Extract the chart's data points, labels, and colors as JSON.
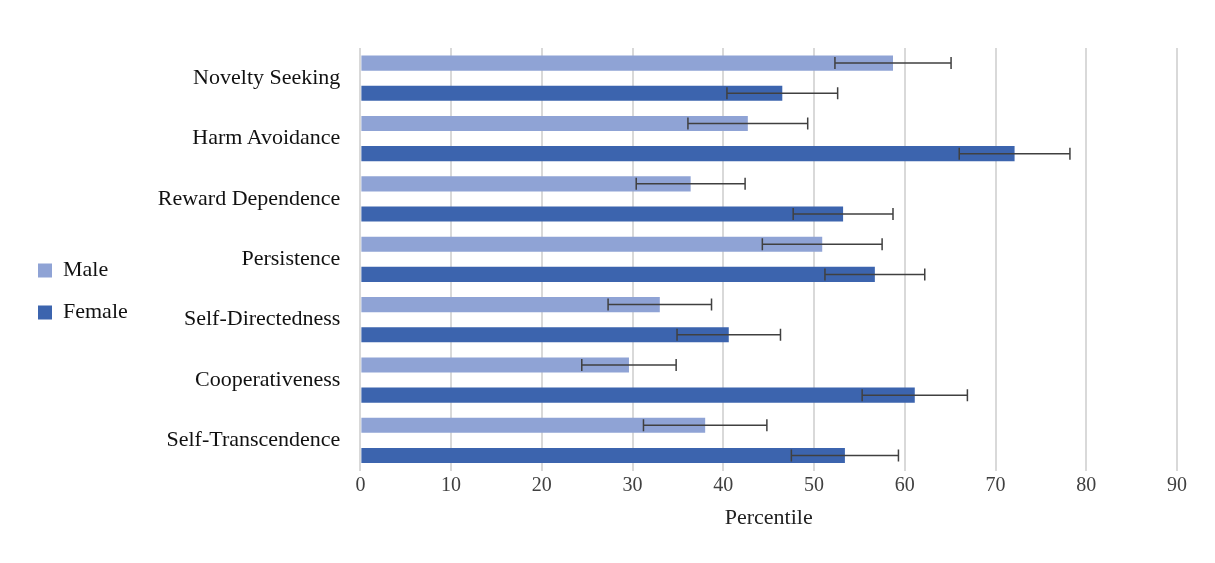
{
  "chart_data": {
    "type": "bar",
    "orientation": "horizontal",
    "xlabel": "Percentile",
    "categories": [
      "Novelty Seeking",
      "Harm Avoidance",
      "Reward Dependence",
      "Persistence",
      "Self-Directedness",
      "Cooperativeness",
      "Self-Transcendence"
    ],
    "series": [
      {
        "name": "Male",
        "color": "#8fa3d5",
        "values": [
          58.7,
          42.7,
          36.4,
          50.9,
          33.0,
          29.6,
          38.0
        ],
        "errors": [
          6.4,
          6.6,
          6.0,
          6.6,
          5.7,
          5.2,
          6.8
        ]
      },
      {
        "name": "Female",
        "color": "#3c64ae",
        "values": [
          46.5,
          72.1,
          53.2,
          56.7,
          40.6,
          61.1,
          53.4
        ],
        "errors": [
          6.1,
          6.1,
          5.5,
          5.5,
          5.7,
          5.8,
          5.9
        ]
      }
    ],
    "xlim": [
      0,
      90
    ],
    "xticks": [
      0,
      10,
      20,
      30,
      40,
      50,
      60,
      70,
      80,
      90
    ],
    "grid": "x",
    "legend": "left"
  }
}
